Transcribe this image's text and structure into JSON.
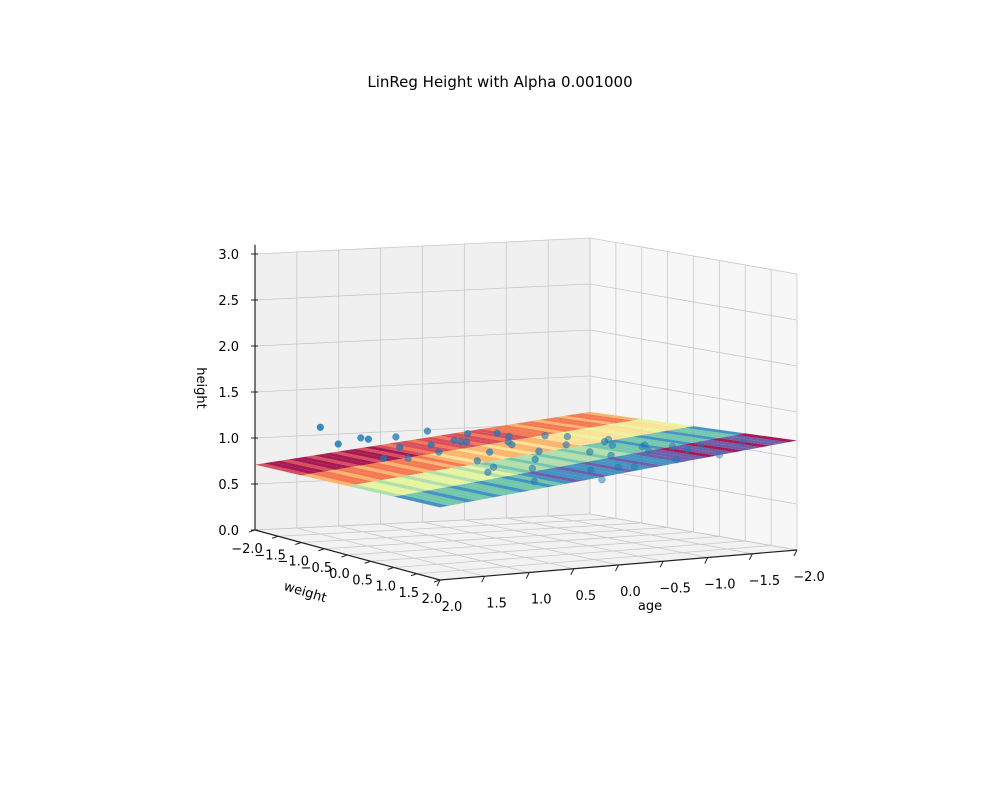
{
  "chart_data": {
    "type": "scatter",
    "title": "LinReg Height with Alpha 0.001000",
    "xlabel": "age",
    "ylabel": "weight",
    "zlabel": "height",
    "x_ticks": [
      "2.0",
      "1.5",
      "1.0",
      "0.5",
      "0.0",
      "−0.5",
      "−1.0",
      "−1.5",
      "−2.0"
    ],
    "y_ticks": [
      "−2.0",
      "−1.5",
      "−1.0",
      "−0.5",
      "0.0",
      "0.5",
      "1.0",
      "1.5",
      "2.0"
    ],
    "z_ticks": [
      "0.0",
      "0.5",
      "1.0",
      "1.5",
      "2.0",
      "2.5",
      "3.0"
    ],
    "xlim": [
      -2.0,
      2.0
    ],
    "ylim": [
      -2.0,
      2.0
    ],
    "zlim": [
      0.0,
      3.0
    ],
    "grid": true,
    "surface": {
      "type": "regression-plane",
      "colormap": "Spectral",
      "height_range": [
        0.75,
        1.15
      ]
    },
    "series": [
      {
        "marker_color": "#1f77b4",
        "points": [
          {
            "age": -0.2,
            "weight": 0.6,
            "height": 1.22
          },
          {
            "age": 0.0,
            "weight": 0.5,
            "height": 1.23
          },
          {
            "age": 0.3,
            "weight": 0.3,
            "height": 1.22
          },
          {
            "age": -0.5,
            "weight": 0.9,
            "height": 1.2
          },
          {
            "age": 0.5,
            "weight": -0.2,
            "height": 1.2
          },
          {
            "age": 0.8,
            "weight": -0.5,
            "height": 1.21
          },
          {
            "age": -0.8,
            "weight": 1.1,
            "height": 1.14
          },
          {
            "age": -1.0,
            "weight": 1.3,
            "height": 1.13
          },
          {
            "age": -1.2,
            "weight": 1.5,
            "height": 1.15
          },
          {
            "age": -0.6,
            "weight": 0.8,
            "height": 1.12
          },
          {
            "age": 0.2,
            "weight": 0.1,
            "height": 1.13
          },
          {
            "age": 0.6,
            "weight": -0.3,
            "height": 1.12
          },
          {
            "age": 1.0,
            "weight": -0.8,
            "height": 1.12
          },
          {
            "age": 1.3,
            "weight": -1.0,
            "height": 1.1
          },
          {
            "age": -0.3,
            "weight": 0.4,
            "height": 1.1
          },
          {
            "age": 0.1,
            "weight": 0.0,
            "height": 1.08
          },
          {
            "age": 0.4,
            "weight": -0.4,
            "height": 1.08
          },
          {
            "age": -0.9,
            "weight": 1.0,
            "height": 1.06
          },
          {
            "age": -0.4,
            "weight": 0.7,
            "height": 1.05
          },
          {
            "age": 0.7,
            "weight": -0.6,
            "height": 1.04
          },
          {
            "age": 1.1,
            "weight": -1.2,
            "height": 1.05
          },
          {
            "age": -1.3,
            "weight": 1.7,
            "height": 1.06
          },
          {
            "age": -0.1,
            "weight": 0.2,
            "height": 1.02
          },
          {
            "age": 0.3,
            "weight": -0.1,
            "height": 1.0
          },
          {
            "age": -0.7,
            "weight": 0.6,
            "height": 0.98
          },
          {
            "age": 0.9,
            "weight": -0.9,
            "height": 0.99
          },
          {
            "age": 1.4,
            "weight": -1.3,
            "height": 1.0
          },
          {
            "age": -1.1,
            "weight": 1.2,
            "height": 0.97
          },
          {
            "age": 0.0,
            "weight": 0.3,
            "height": 0.95
          },
          {
            "age": 0.5,
            "weight": 0.0,
            "height": 0.93
          },
          {
            "age": -0.5,
            "weight": 1.1,
            "height": 0.92
          },
          {
            "age": 0.2,
            "weight": 0.6,
            "height": 0.9
          },
          {
            "age": 1.2,
            "weight": -0.7,
            "height": 0.91
          },
          {
            "age": -0.3,
            "weight": 0.9,
            "height": 0.88
          },
          {
            "age": 0.6,
            "weight": 0.4,
            "height": 0.86
          },
          {
            "age": -0.2,
            "weight": 1.3,
            "height": 0.83
          },
          {
            "age": 0.4,
            "weight": 1.0,
            "height": 0.82
          },
          {
            "age": 0.8,
            "weight": 0.2,
            "height": 1.18
          },
          {
            "age": -0.6,
            "weight": 1.4,
            "height": 1.17
          },
          {
            "age": 1.5,
            "weight": -1.5,
            "height": 1.16
          },
          {
            "age": -1.5,
            "weight": 1.8,
            "height": 1.19
          },
          {
            "age": 0.1,
            "weight": -0.3,
            "height": 1.17
          },
          {
            "age": -0.8,
            "weight": 0.3,
            "height": 1.09
          },
          {
            "age": 1.0,
            "weight": 0.1,
            "height": 1.07
          },
          {
            "age": -1.4,
            "weight": 0.9,
            "height": 1.03
          },
          {
            "age": 0.7,
            "weight": 0.7,
            "height": 0.96
          },
          {
            "age": -0.4,
            "weight": 1.6,
            "height": 0.99
          },
          {
            "age": 1.3,
            "weight": 0.0,
            "height": 1.01
          }
        ]
      }
    ]
  }
}
